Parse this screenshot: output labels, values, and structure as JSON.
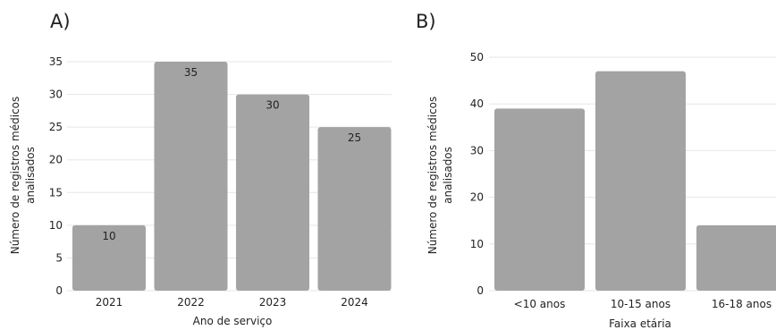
{
  "colors": {
    "bar": "#a3a3a3",
    "grid": "#e6e6e6",
    "text": "#222222"
  },
  "chart_data": [
    {
      "type": "bar",
      "panel": "A)",
      "categories": [
        "2021",
        "2022",
        "2023",
        "2024"
      ],
      "values": [
        10,
        35,
        30,
        25
      ],
      "data_labels": [
        "10",
        "35",
        "30",
        "25"
      ],
      "xlabel": "Ano de serviço",
      "ylabel": [
        "Número de registros médicos",
        "analisados"
      ],
      "ylim": [
        0,
        35
      ],
      "yticks": [
        0,
        5,
        10,
        15,
        20,
        25,
        30,
        35
      ],
      "grid": true,
      "legend": "none"
    },
    {
      "type": "bar",
      "panel": "B)",
      "categories": [
        "<10 anos",
        "10-15 anos",
        "16-18 anos"
      ],
      "values": [
        39,
        47,
        14
      ],
      "xlabel": "Faixa etária",
      "ylabel": [
        "Número de registros médicos",
        "analisados"
      ],
      "ylim": [
        0,
        50
      ],
      "yticks": [
        0,
        10,
        20,
        30,
        40,
        50
      ],
      "grid": true,
      "legend": "none"
    }
  ]
}
